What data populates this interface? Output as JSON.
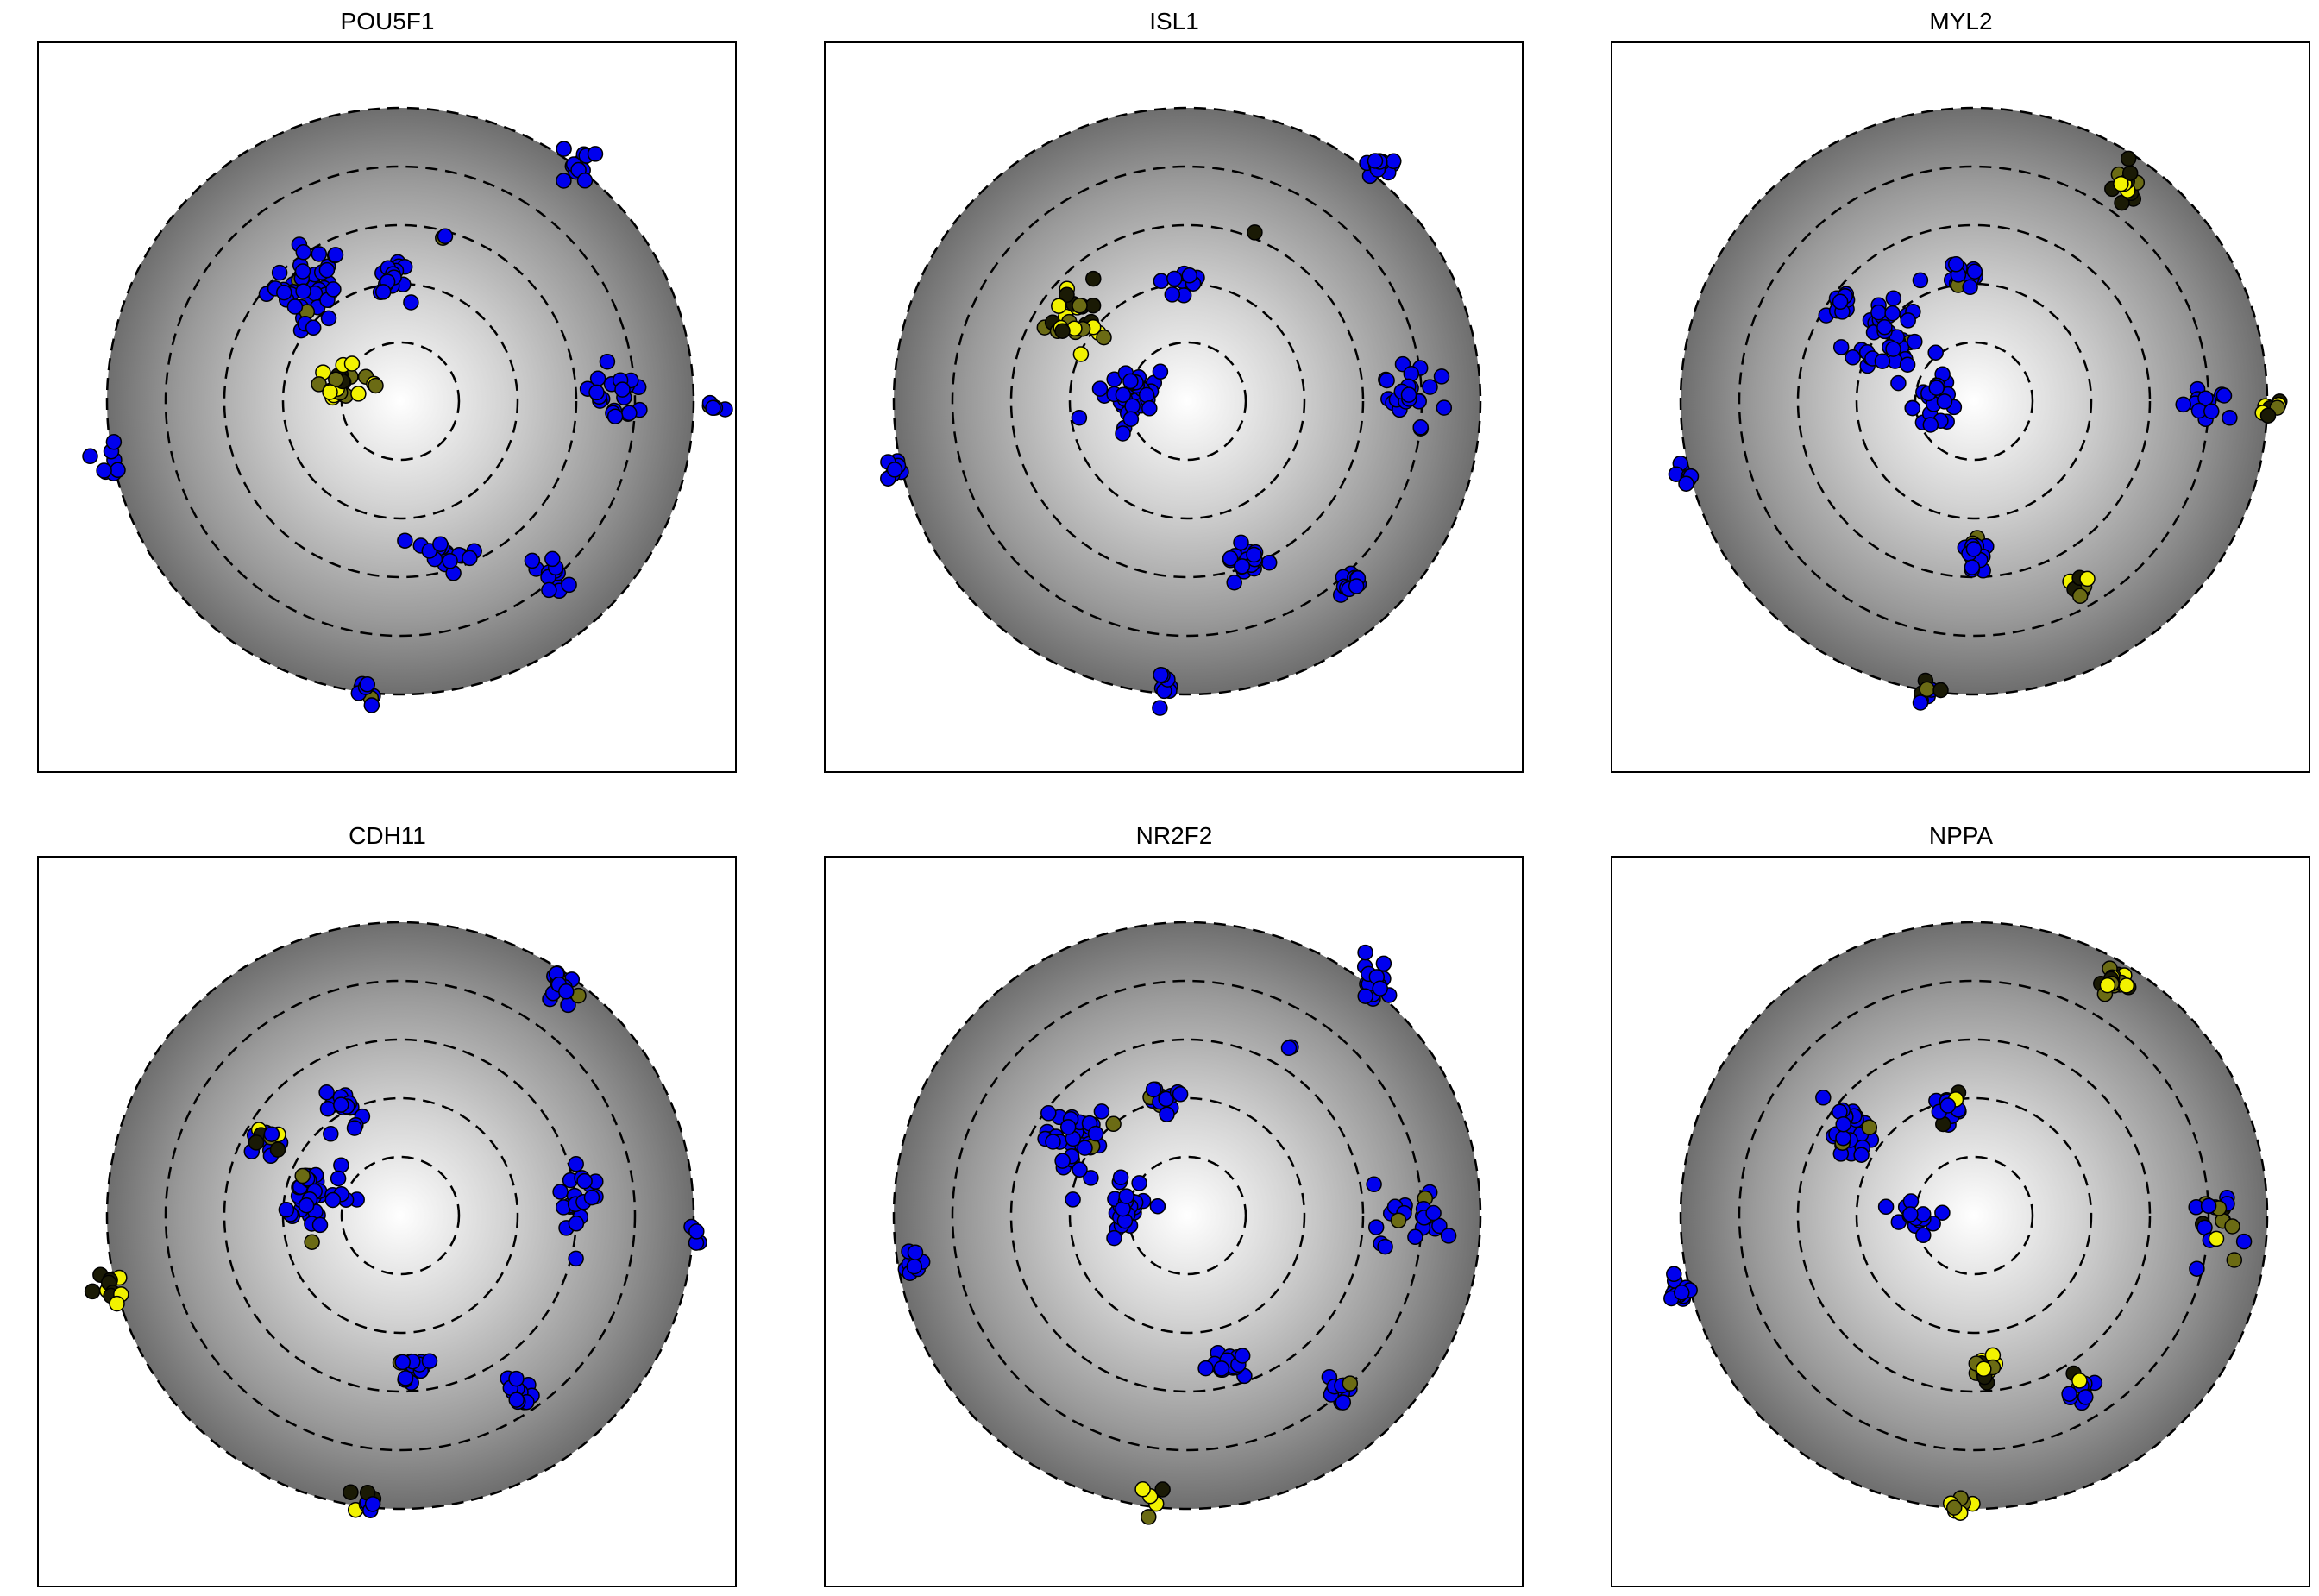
{
  "figure": {
    "panel_titles": [
      "POU5F1",
      "ISL1",
      "MYL2",
      "CDH11",
      "NR2F2",
      "NPPA"
    ]
  },
  "colors": {
    "background": "#ffffff",
    "frame": "#000000",
    "disc_center": "#ffffff",
    "disc_edge": "#6e6e6e",
    "ring": "#000000",
    "point_outline": "#000000",
    "low_expression": "#0000ee",
    "dark_expression": "#1a1a05",
    "mid_expression": "#6b6b14",
    "high_expression": "#f2f200"
  },
  "chart_data": [
    {
      "type": "scatter",
      "title": "POU5F1",
      "xlabel": "",
      "ylabel": "",
      "xlim": [
        -1.25,
        1.25
      ],
      "ylim": [
        -1.25,
        1.25
      ],
      "grid": false,
      "legend": "none",
      "background": "radial gray disc, radius 1, with dashed rings at 0.2, 0.4, 0.6, 0.8, 1.0",
      "clusters": [
        {
          "x": -0.32,
          "y": 0.4,
          "spread": 0.12,
          "n": 45,
          "values": "blue"
        },
        {
          "x": -0.2,
          "y": 0.05,
          "spread": 0.08,
          "n": 22,
          "values": "yellow"
        },
        {
          "x": -0.03,
          "y": 0.41,
          "spread": 0.06,
          "n": 16,
          "values": "blue"
        },
        {
          "x": 0.15,
          "y": 0.57,
          "spread": 0.01,
          "n": 2,
          "values": "mix"
        },
        {
          "x": 0.6,
          "y": 0.79,
          "spread": 0.05,
          "n": 14,
          "values": "blue"
        },
        {
          "x": 0.75,
          "y": 0.02,
          "spread": 0.12,
          "n": 20,
          "values": "blue"
        },
        {
          "x": 1.06,
          "y": -0.01,
          "spread": 0.03,
          "n": 5,
          "values": "blue"
        },
        {
          "x": -1.0,
          "y": -0.2,
          "spread": 0.06,
          "n": 8,
          "values": "blue"
        },
        {
          "x": 0.15,
          "y": -0.52,
          "spread": 0.07,
          "n": 18,
          "values": "blue"
        },
        {
          "x": 0.52,
          "y": -0.6,
          "spread": 0.05,
          "n": 12,
          "values": "blue"
        },
        {
          "x": -0.12,
          "y": -0.97,
          "spread": 0.05,
          "n": 8,
          "values": "blue"
        }
      ]
    },
    {
      "type": "scatter",
      "title": "ISL1",
      "xlabel": "",
      "ylabel": "",
      "xlim": [
        -1.25,
        1.25
      ],
      "ylim": [
        -1.25,
        1.25
      ],
      "grid": false,
      "legend": "none",
      "background": "radial gray disc, radius 1, with dashed rings at 0.2, 0.4, 0.6, 0.8, 1.0",
      "clusters": [
        {
          "x": -0.37,
          "y": 0.28,
          "spread": 0.09,
          "n": 28,
          "values": "yellow"
        },
        {
          "x": -0.2,
          "y": 0.02,
          "spread": 0.09,
          "n": 38,
          "values": "blue"
        },
        {
          "x": -0.03,
          "y": 0.41,
          "spread": 0.05,
          "n": 14,
          "values": "blue"
        },
        {
          "x": 0.22,
          "y": 0.57,
          "spread": 0.01,
          "n": 1,
          "values": "black"
        },
        {
          "x": 0.65,
          "y": 0.8,
          "spread": 0.05,
          "n": 14,
          "values": "blue"
        },
        {
          "x": 0.76,
          "y": 0.0,
          "spread": 0.12,
          "n": 22,
          "values": "blue"
        },
        {
          "x": -1.0,
          "y": -0.23,
          "spread": 0.04,
          "n": 7,
          "values": "blue"
        },
        {
          "x": 0.19,
          "y": -0.54,
          "spread": 0.05,
          "n": 20,
          "values": "blue"
        },
        {
          "x": 0.55,
          "y": -0.62,
          "spread": 0.05,
          "n": 12,
          "values": "blue"
        },
        {
          "x": -0.08,
          "y": -0.98,
          "spread": 0.04,
          "n": 8,
          "values": "blue"
        }
      ]
    },
    {
      "type": "scatter",
      "title": "MYL2",
      "xlabel": "",
      "ylabel": "",
      "xlim": [
        -1.25,
        1.25
      ],
      "ylim": [
        -1.25,
        1.25
      ],
      "grid": false,
      "legend": "none",
      "background": "radial gray disc, radius 1, with dashed rings at 0.2, 0.4, 0.6, 0.8, 1.0",
      "clusters": [
        {
          "x": -0.3,
          "y": 0.22,
          "spread": 0.13,
          "n": 42,
          "values": "blue"
        },
        {
          "x": -0.45,
          "y": 0.33,
          "spread": 0.04,
          "n": 8,
          "values": "blue"
        },
        {
          "x": -0.13,
          "y": 0.0,
          "spread": 0.07,
          "n": 20,
          "values": "blue"
        },
        {
          "x": -0.05,
          "y": 0.44,
          "spread": 0.06,
          "n": 16,
          "values": "blue"
        },
        {
          "x": 0.52,
          "y": 0.74,
          "spread": 0.05,
          "n": 16,
          "values": "yellow"
        },
        {
          "x": 0.78,
          "y": 0.0,
          "spread": 0.1,
          "n": 14,
          "values": "blue"
        },
        {
          "x": 1.0,
          "y": -0.02,
          "spread": 0.03,
          "n": 8,
          "values": "yellow"
        },
        {
          "x": -1.0,
          "y": -0.25,
          "spread": 0.05,
          "n": 8,
          "values": "blue"
        },
        {
          "x": 0.0,
          "y": -0.52,
          "spread": 0.05,
          "n": 18,
          "values": "blue"
        },
        {
          "x": 0.35,
          "y": -0.64,
          "spread": 0.04,
          "n": 12,
          "values": "yellow"
        },
        {
          "x": -0.15,
          "y": -1.0,
          "spread": 0.05,
          "n": 8,
          "values": "mix"
        }
      ]
    },
    {
      "type": "scatter",
      "title": "CDH11",
      "xlabel": "",
      "ylabel": "",
      "xlim": [
        -1.25,
        1.25
      ],
      "ylim": [
        -1.25,
        1.25
      ],
      "grid": false,
      "legend": "none",
      "background": "radial gray disc, radius 1, with dashed rings at 0.2, 0.4, 0.6, 0.8, 1.0",
      "clusters": [
        {
          "x": -0.45,
          "y": 0.25,
          "spread": 0.06,
          "n": 16,
          "values": "mix"
        },
        {
          "x": -0.3,
          "y": 0.07,
          "spread": 0.1,
          "n": 38,
          "values": "blue"
        },
        {
          "x": -0.2,
          "y": 0.39,
          "spread": 0.06,
          "n": 16,
          "values": "blue"
        },
        {
          "x": 0.55,
          "y": 0.79,
          "spread": 0.05,
          "n": 14,
          "values": "blue"
        },
        {
          "x": 0.62,
          "y": 0.04,
          "spread": 0.12,
          "n": 20,
          "values": "blue"
        },
        {
          "x": 1.0,
          "y": -0.06,
          "spread": 0.03,
          "n": 4,
          "values": "blue"
        },
        {
          "x": -1.0,
          "y": -0.25,
          "spread": 0.05,
          "n": 10,
          "values": "yellow"
        },
        {
          "x": 0.05,
          "y": -0.52,
          "spread": 0.05,
          "n": 18,
          "values": "blue"
        },
        {
          "x": 0.4,
          "y": -0.6,
          "spread": 0.05,
          "n": 12,
          "values": "blue"
        },
        {
          "x": -0.12,
          "y": -0.97,
          "spread": 0.04,
          "n": 8,
          "values": "mix"
        }
      ]
    },
    {
      "type": "scatter",
      "title": "NR2F2",
      "xlabel": "",
      "ylabel": "",
      "xlim": [
        -1.25,
        1.25
      ],
      "ylim": [
        -1.25,
        1.25
      ],
      "grid": false,
      "legend": "none",
      "background": "radial gray disc, radius 1, with dashed rings at 0.2, 0.4, 0.6, 0.8, 1.0",
      "clusters": [
        {
          "x": -0.38,
          "y": 0.25,
          "spread": 0.11,
          "n": 40,
          "values": "blue"
        },
        {
          "x": -0.2,
          "y": 0.03,
          "spread": 0.08,
          "n": 26,
          "values": "blue"
        },
        {
          "x": -0.08,
          "y": 0.4,
          "spread": 0.05,
          "n": 14,
          "values": "blue"
        },
        {
          "x": 0.35,
          "y": 0.57,
          "spread": 0.02,
          "n": 2,
          "values": "blue"
        },
        {
          "x": 0.65,
          "y": 0.8,
          "spread": 0.05,
          "n": 14,
          "values": "blue"
        },
        {
          "x": 0.75,
          "y": 0.0,
          "spread": 0.12,
          "n": 22,
          "values": "blue"
        },
        {
          "x": -0.95,
          "y": -0.18,
          "spread": 0.04,
          "n": 8,
          "values": "blue"
        },
        {
          "x": 0.15,
          "y": -0.5,
          "spread": 0.05,
          "n": 18,
          "values": "blue"
        },
        {
          "x": 0.52,
          "y": -0.6,
          "spread": 0.04,
          "n": 12,
          "values": "blue"
        },
        {
          "x": -0.12,
          "y": -0.97,
          "spread": 0.04,
          "n": 5,
          "values": "yellow"
        }
      ]
    },
    {
      "type": "scatter",
      "title": "NPPA",
      "xlabel": "",
      "ylabel": "",
      "xlim": [
        -1.25,
        1.25
      ],
      "ylim": [
        -1.25,
        1.25
      ],
      "grid": false,
      "legend": "none",
      "background": "radial gray disc, radius 1, with dashed rings at 0.2, 0.4, 0.6, 0.8, 1.0",
      "clusters": [
        {
          "x": -0.41,
          "y": 0.28,
          "spread": 0.09,
          "n": 34,
          "values": "blue"
        },
        {
          "x": -0.19,
          "y": 0.0,
          "spread": 0.06,
          "n": 16,
          "values": "blue"
        },
        {
          "x": -0.08,
          "y": 0.37,
          "spread": 0.05,
          "n": 14,
          "values": "mix"
        },
        {
          "x": 0.48,
          "y": 0.79,
          "spread": 0.05,
          "n": 16,
          "values": "yellow"
        },
        {
          "x": 0.83,
          "y": -0.02,
          "spread": 0.1,
          "n": 18,
          "values": "mix"
        },
        {
          "x": -1.01,
          "y": -0.26,
          "spread": 0.04,
          "n": 12,
          "values": "blue"
        },
        {
          "x": 0.04,
          "y": -0.52,
          "spread": 0.04,
          "n": 18,
          "values": "yellow"
        },
        {
          "x": 0.37,
          "y": -0.6,
          "spread": 0.05,
          "n": 14,
          "values": "mix"
        },
        {
          "x": -0.05,
          "y": -0.98,
          "spread": 0.04,
          "n": 8,
          "values": "yellow"
        }
      ]
    }
  ]
}
